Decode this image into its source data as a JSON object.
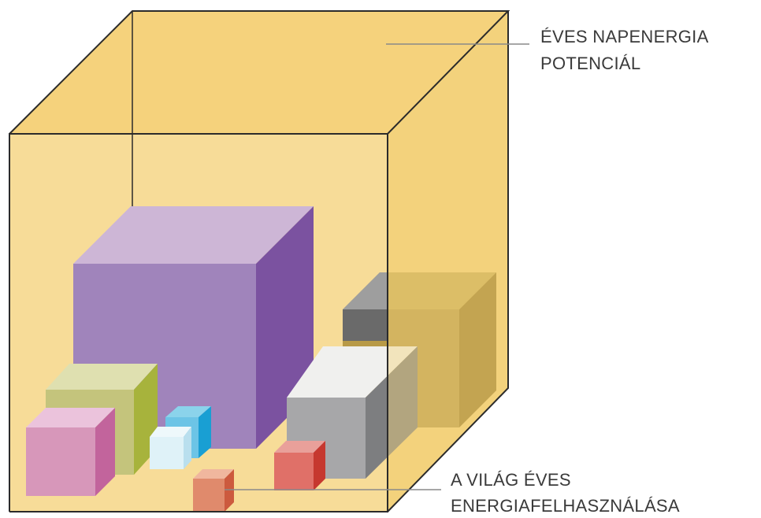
{
  "labels": {
    "solar_potential": [
      "ÉVES NAPENERGIA",
      "POTENCIÁL"
    ],
    "world_consumption": [
      "A VILÁG ÉVES",
      "ENERGIAFELHASZNÁLÁSA"
    ]
  }
}
